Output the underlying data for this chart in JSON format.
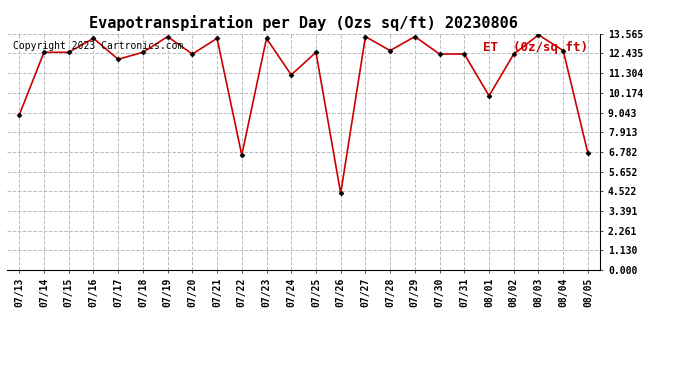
{
  "title": "Evapotranspiration per Day (Ozs sq/ft) 20230806",
  "legend_label": "ET  (0z/sq ft)",
  "copyright_text": "Copyright 2023 Cartronics.com",
  "dates": [
    "07/13",
    "07/14",
    "07/15",
    "07/16",
    "07/17",
    "07/18",
    "07/19",
    "07/20",
    "07/21",
    "07/22",
    "07/23",
    "07/24",
    "07/25",
    "07/26",
    "07/27",
    "07/28",
    "07/29",
    "07/30",
    "07/31",
    "08/01",
    "08/02",
    "08/03",
    "08/04",
    "08/05"
  ],
  "values": [
    8.9,
    12.5,
    12.5,
    13.3,
    12.1,
    12.5,
    13.4,
    12.4,
    13.3,
    6.6,
    13.3,
    11.2,
    12.5,
    4.4,
    13.4,
    12.6,
    13.4,
    12.4,
    12.4,
    10.0,
    12.4,
    13.5,
    12.6,
    6.7
  ],
  "yticks": [
    0.0,
    1.13,
    2.261,
    3.391,
    4.522,
    5.652,
    6.782,
    7.913,
    9.043,
    10.174,
    11.304,
    12.435,
    13.565
  ],
  "ylim": [
    0,
    13.565
  ],
  "line_color": "#cc0000",
  "marker": "D",
  "marker_size": 2.5,
  "line_width": 1.2,
  "background_color": "#ffffff",
  "grid_color": "#bbbbbb",
  "title_fontsize": 11,
  "tick_fontsize": 7,
  "copyright_fontsize": 7,
  "legend_fontsize": 9,
  "legend_color": "#cc0000"
}
